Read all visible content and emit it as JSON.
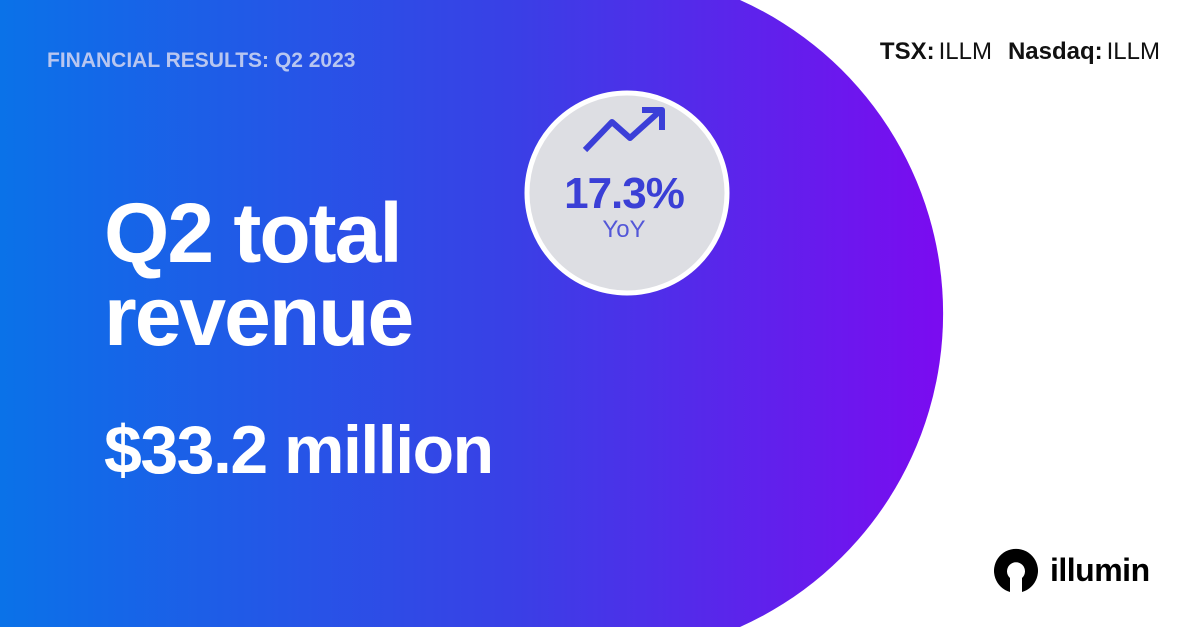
{
  "header": {
    "label": "FINANCIAL RESULTS: Q2 2023"
  },
  "tickers": [
    {
      "exchange": "TSX:",
      "symbol": "ILLM"
    },
    {
      "exchange": "Nasdaq:",
      "symbol": "ILLM"
    }
  ],
  "headline": {
    "lines": [
      "Q2 total",
      "revenue"
    ]
  },
  "amount": "$33.2 million",
  "badge": {
    "value": "17.3%",
    "label": "YoY"
  },
  "logo": {
    "text": "illumin"
  }
}
